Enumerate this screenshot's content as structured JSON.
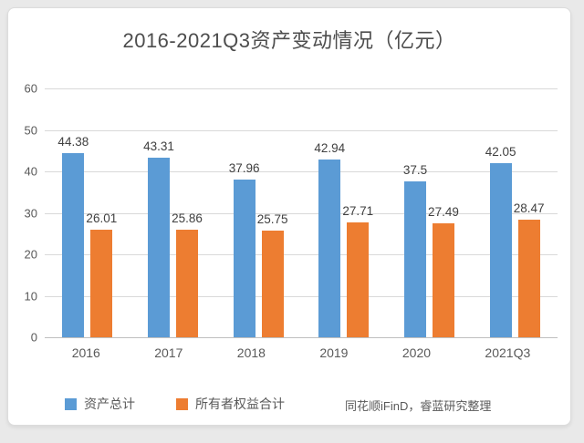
{
  "page": {
    "background_color": "#e9e9e9",
    "card_background_color": "#ffffff"
  },
  "chart_data": {
    "type": "bar",
    "title": "2016-2021Q3资产变动情况（亿元）",
    "categories": [
      "2016",
      "2017",
      "2018",
      "2019",
      "2020",
      "2021Q3"
    ],
    "series": [
      {
        "name": "资产总计",
        "color": "#5B9BD5",
        "values": [
          44.38,
          43.31,
          37.96,
          42.94,
          37.5,
          42.05
        ]
      },
      {
        "name": "所有者权益合计",
        "color": "#ED7D31",
        "values": [
          26.01,
          25.86,
          25.75,
          27.71,
          27.49,
          28.47
        ]
      }
    ],
    "xlabel": "",
    "ylabel": "",
    "ylim": [
      0,
      60
    ],
    "yticks": [
      0,
      10,
      20,
      30,
      40,
      50,
      60
    ],
    "grid": true,
    "legend_position": "bottom",
    "data_labels": true,
    "gridline_color": "#d9d9d9",
    "axis_text_color": "#595959",
    "data_label_color": "#404040",
    "title_color": "#4d4d4d"
  },
  "source_note": "同花顺iFinD，睿蓝研究整理"
}
